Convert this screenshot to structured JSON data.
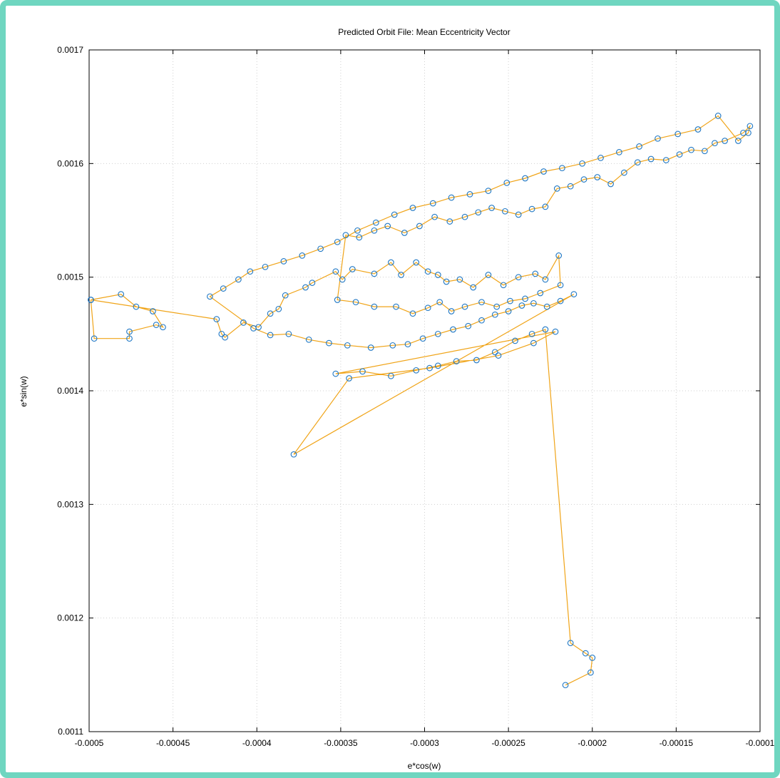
{
  "colors": {
    "frame": "#6fd6c0",
    "line": "#f0a418",
    "marker": "#1f77c4",
    "grid": "#cfcfcf"
  },
  "chart_data": {
    "type": "line",
    "title": "Predicted Orbit File: Mean Eccentricity Vector",
    "xlabel": "e*cos(w)",
    "ylabel": "e*sin(w)",
    "xlim": [
      -0.0005,
      -0.0001
    ],
    "ylim": [
      0.0011,
      0.0017
    ],
    "xticks": [
      -0.0005,
      -0.00045,
      -0.0004,
      -0.00035,
      -0.0003,
      -0.00025,
      -0.0002,
      -0.00015,
      -0.0001
    ],
    "xtick_labels": [
      "-0.0005",
      "-0.00045",
      "-0.0004",
      "-0.00035",
      "-0.0003",
      "-0.00025",
      "-0.0002",
      "-0.00015",
      "-0.0001"
    ],
    "yticks": [
      0.0011,
      0.0012,
      0.0013,
      0.0014,
      0.0015,
      0.0016,
      0.0017
    ],
    "ytick_labels": [
      "0.0011",
      "0.0012",
      "0.0013",
      "0.0014",
      "0.0015",
      "0.0016",
      "0.0017"
    ],
    "grid": true,
    "marker": "circle",
    "series": [
      {
        "x": [
          -0.000499,
          -0.000497,
          -0.000476,
          -0.000476,
          -0.00046,
          -0.000456,
          -0.000462,
          -0.000472,
          -0.000481,
          -0.000499,
          -0.000424,
          -0.000421,
          -0.000419,
          -0.000408,
          -0.000399,
          -0.000392,
          -0.000387,
          -0.000383,
          -0.000371,
          -0.000367,
          -0.000353,
          -0.000349,
          -0.000343,
          -0.00033,
          -0.00032,
          -0.000314,
          -0.000305,
          -0.000298,
          -0.000292,
          -0.000287,
          -0.000279,
          -0.000271,
          -0.000262,
          -0.000253,
          -0.000244,
          -0.000234,
          -0.000228,
          -0.00022,
          -0.000219,
          -0.000231,
          -0.00024,
          -0.000249,
          -0.000257,
          -0.000266,
          -0.000276,
          -0.000284,
          -0.000291,
          -0.000298,
          -0.000307,
          -0.000317,
          -0.00033,
          -0.000341,
          -0.000352,
          -0.000347,
          -0.000339,
          -0.00033,
          -0.000322,
          -0.000312,
          -0.000303,
          -0.000294,
          -0.000285,
          -0.000276,
          -0.000268,
          -0.00026,
          -0.000252,
          -0.000244,
          -0.000236,
          -0.000228,
          -0.000221,
          -0.000213,
          -0.000205,
          -0.000197,
          -0.000189,
          -0.000181,
          -0.000173,
          -0.000165,
          -0.000156,
          -0.000148,
          -0.000141,
          -0.000133,
          -0.000127,
          -0.000121,
          -0.00011,
          -0.000106,
          -0.000107,
          -0.000113,
          -0.000125,
          -0.000137,
          -0.000149,
          -0.000161,
          -0.000172,
          -0.000184,
          -0.000195,
          -0.000206,
          -0.000218,
          -0.000229,
          -0.00024,
          -0.000251,
          -0.000262,
          -0.000273,
          -0.000284,
          -0.000295,
          -0.000307,
          -0.000318,
          -0.000329,
          -0.00034,
          -0.000352,
          -0.000362,
          -0.000373,
          -0.000384,
          -0.000395,
          -0.000404,
          -0.000411,
          -0.00042,
          -0.000428,
          -0.000402,
          -0.000392,
          -0.000381,
          -0.000369,
          -0.000357,
          -0.000346,
          -0.000332,
          -0.000319,
          -0.00031,
          -0.000301,
          -0.000292,
          -0.000283,
          -0.000274,
          -0.000266,
          -0.000258,
          -0.00025,
          -0.000242,
          -0.000235,
          -0.000227,
          -0.000219,
          -0.000211,
          -0.000378,
          -0.000345,
          -0.000297,
          -0.000256,
          -0.000235,
          -0.000222,
          -0.000353,
          -0.000337,
          -0.00032,
          -0.000305,
          -0.000292,
          -0.000281,
          -0.000269,
          -0.000258,
          -0.000246,
          -0.000236,
          -0.000228,
          -0.000213,
          -0.000204,
          -0.0002,
          -0.000201,
          -0.000216
        ],
        "y": [
          0.00148,
          0.001446,
          0.001446,
          0.001452,
          0.001458,
          0.001456,
          0.00147,
          0.001474,
          0.001485,
          0.00148,
          0.001463,
          0.00145,
          0.001447,
          0.00146,
          0.001456,
          0.001468,
          0.001472,
          0.001484,
          0.001491,
          0.001495,
          0.001505,
          0.001498,
          0.001507,
          0.001503,
          0.001513,
          0.001502,
          0.001513,
          0.001505,
          0.001502,
          0.001496,
          0.001498,
          0.001491,
          0.001502,
          0.001493,
          0.0015,
          0.001503,
          0.001498,
          0.001519,
          0.001493,
          0.001486,
          0.001481,
          0.001479,
          0.001474,
          0.001478,
          0.001474,
          0.00147,
          0.001478,
          0.001473,
          0.001468,
          0.001474,
          0.001474,
          0.001478,
          0.00148,
          0.001537,
          0.001535,
          0.001541,
          0.001545,
          0.001539,
          0.001545,
          0.001553,
          0.001549,
          0.001553,
          0.001557,
          0.001561,
          0.001558,
          0.001555,
          0.00156,
          0.001562,
          0.001578,
          0.00158,
          0.001586,
          0.001588,
          0.001582,
          0.001592,
          0.001601,
          0.001604,
          0.001603,
          0.001608,
          0.001612,
          0.001611,
          0.001618,
          0.00162,
          0.001627,
          0.001633,
          0.001627,
          0.00162,
          0.001642,
          0.00163,
          0.001626,
          0.001622,
          0.001615,
          0.00161,
          0.001605,
          0.0016,
          0.001596,
          0.001593,
          0.001587,
          0.001583,
          0.001576,
          0.001573,
          0.00157,
          0.001565,
          0.001561,
          0.001555,
          0.001548,
          0.001541,
          0.001531,
          0.001525,
          0.001519,
          0.001514,
          0.001509,
          0.001505,
          0.001498,
          0.00149,
          0.001483,
          0.001455,
          0.001449,
          0.00145,
          0.001445,
          0.001442,
          0.00144,
          0.001438,
          0.00144,
          0.001441,
          0.001446,
          0.00145,
          0.001454,
          0.001457,
          0.001462,
          0.001467,
          0.00147,
          0.001475,
          0.001477,
          0.001474,
          0.001479,
          0.001485,
          0.001344,
          0.001411,
          0.00142,
          0.001431,
          0.001442,
          0.001452,
          0.001415,
          0.001417,
          0.001413,
          0.001418,
          0.001422,
          0.001426,
          0.001427,
          0.001434,
          0.001444,
          0.00145,
          0.001454,
          0.001178,
          0.001169,
          0.001165,
          0.001152,
          0.001141
        ]
      }
    ]
  }
}
